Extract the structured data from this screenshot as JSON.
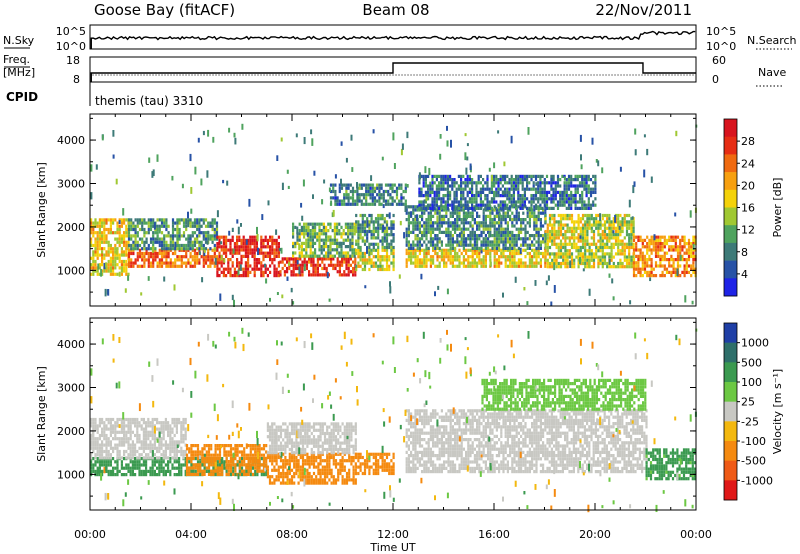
{
  "header": {
    "station": "Goose Bay (fitACF)",
    "beam": "Beam 08",
    "date": "22/Nov/2011"
  },
  "noise_panel": {
    "left_label": "N.Sky",
    "left_ticks": [
      "10^5",
      "10^0"
    ],
    "right_label": "N.Search",
    "right_ticks": [
      "10^5",
      "10^0"
    ]
  },
  "freq_panel": {
    "left_label_1": "Freq.",
    "left_label_2": "[MHz]",
    "left_ticks": [
      "18",
      "8"
    ],
    "right_label": "Nave",
    "right_ticks": [
      "60",
      "0"
    ]
  },
  "cpid": {
    "label": "CPID",
    "value": "themis (tau) 3310"
  },
  "x_axis": {
    "label": "Time UT",
    "ticks": [
      "00:00",
      "04:00",
      "08:00",
      "12:00",
      "16:00",
      "20:00",
      "00:00"
    ]
  },
  "chart_data": [
    {
      "type": "heatmap",
      "quantity": "Power",
      "ylabel": "Slant Range [km]",
      "xlabel": "Time UT",
      "x_range_hours": [
        0,
        24
      ],
      "ylim": [
        180,
        4600
      ],
      "yticks": [
        "1000",
        "2000",
        "3000",
        "4000"
      ],
      "colorbar_label": "Power [dB]",
      "colorbar_ticks": [
        "4",
        "8",
        "12",
        "16",
        "20",
        "24",
        "28"
      ],
      "colorbar_range": [
        0,
        32
      ],
      "colormap": [
        "#1e23e6",
        "#2752a6",
        "#3d7a78",
        "#4fa35e",
        "#a0c832",
        "#f4d20a",
        "#f7a010",
        "#f06a10",
        "#e62d14",
        "#d8141e"
      ],
      "regions": [
        {
          "x": [
            0.0,
            1.5
          ],
          "y": [
            900,
            2200
          ],
          "value": 18
        },
        {
          "x": [
            1.5,
            5.0
          ],
          "y": [
            1100,
            1500
          ],
          "value": 24
        },
        {
          "x": [
            1.5,
            5.0
          ],
          "y": [
            1500,
            2200
          ],
          "value": 10
        },
        {
          "x": [
            5.0,
            7.5
          ],
          "y": [
            900,
            1800
          ],
          "value": 28
        },
        {
          "x": [
            7.5,
            10.5
          ],
          "y": [
            900,
            1300
          ],
          "value": 27
        },
        {
          "x": [
            8.0,
            10.5
          ],
          "y": [
            1300,
            2100
          ],
          "value": 12
        },
        {
          "x": [
            10.5,
            12.0
          ],
          "y": [
            1000,
            1500
          ],
          "value": 16
        },
        {
          "x": [
            10.5,
            12.0
          ],
          "y": [
            1500,
            2300
          ],
          "value": 10
        },
        {
          "x": [
            12.5,
            18.0
          ],
          "y": [
            1100,
            1500
          ],
          "value": 18
        },
        {
          "x": [
            12.5,
            18.0
          ],
          "y": [
            1500,
            2500
          ],
          "value": 9
        },
        {
          "x": [
            18.0,
            21.5
          ],
          "y": [
            1100,
            2300
          ],
          "value": 16
        },
        {
          "x": [
            21.5,
            24.0
          ],
          "y": [
            900,
            1800
          ],
          "value": 22
        },
        {
          "x": [
            9.5,
            12.5
          ],
          "y": [
            2500,
            3000
          ],
          "value": 8
        },
        {
          "x": [
            13.0,
            20.0
          ],
          "y": [
            2400,
            3200
          ],
          "value": 7
        }
      ]
    },
    {
      "type": "heatmap",
      "quantity": "Velocity",
      "ylabel": "Slant Range [km]",
      "xlabel": "Time UT",
      "x_range_hours": [
        0,
        24
      ],
      "ylim": [
        180,
        4600
      ],
      "yticks": [
        "1000",
        "2000",
        "3000",
        "4000"
      ],
      "colorbar_label": "Velocity [m s⁻¹]",
      "colorbar_ticks": [
        "1000",
        "500",
        "100",
        "25",
        "-25",
        "-100",
        "-500",
        "-1000"
      ],
      "colorbar_colors": [
        "#1f3fa6",
        "#2e6f6a",
        "#3b9a50",
        "#6cc843",
        "#c8c8c3",
        "#f3b80f",
        "#f58a10",
        "#ef5a16",
        "#e01818"
      ],
      "regions": [
        {
          "x": [
            0.0,
            3.8
          ],
          "y": [
            1000,
            1400
          ],
          "value": 300
        },
        {
          "x": [
            0.0,
            3.8
          ],
          "y": [
            1400,
            2300
          ],
          "value": 0
        },
        {
          "x": [
            3.8,
            7.0
          ],
          "y": [
            1000,
            1400
          ],
          "value": 300
        },
        {
          "x": [
            3.8,
            7.0
          ],
          "y": [
            1000,
            1700
          ],
          "value": -300
        },
        {
          "x": [
            7.0,
            10.5
          ],
          "y": [
            800,
            1500
          ],
          "value": -200
        },
        {
          "x": [
            7.0,
            10.5
          ],
          "y": [
            1500,
            2200
          ],
          "value": 0
        },
        {
          "x": [
            10.5,
            12.0
          ],
          "y": [
            1000,
            1500
          ],
          "value": -300
        },
        {
          "x": [
            12.5,
            22.0
          ],
          "y": [
            1100,
            2500
          ],
          "value": 0
        },
        {
          "x": [
            15.5,
            22.0
          ],
          "y": [
            2500,
            3200
          ],
          "value": 60
        },
        {
          "x": [
            22.0,
            24.0
          ],
          "y": [
            900,
            1600
          ],
          "value": 150
        }
      ]
    }
  ]
}
